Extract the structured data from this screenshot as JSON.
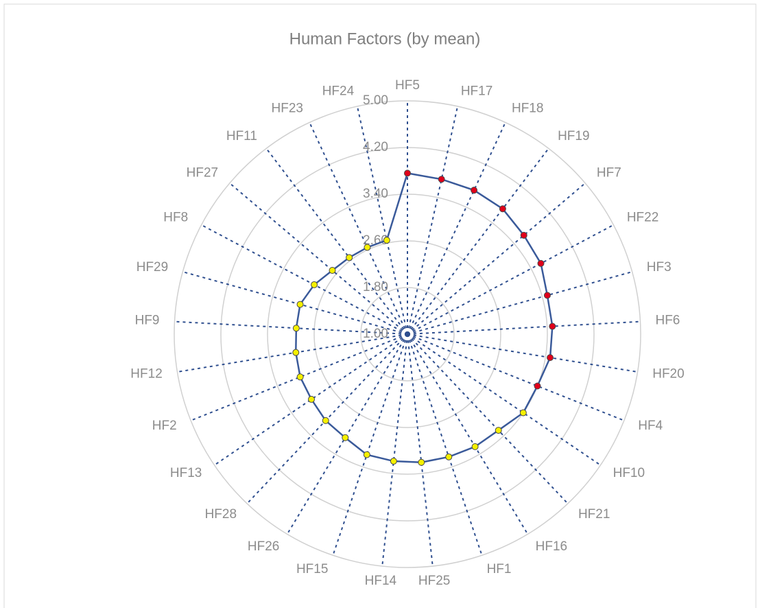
{
  "chart_data": {
    "type": "radar",
    "title": "Human Factors (by mean)",
    "categories": [
      "HF5",
      "HF17",
      "HF18",
      "HF19",
      "HF7",
      "HF22",
      "HF3",
      "HF6",
      "HF20",
      "HF4",
      "HF10",
      "HF21",
      "HF16",
      "HF1",
      "HF25",
      "HF14",
      "HF15",
      "HF26",
      "HF28",
      "HF13",
      "HF2",
      "HF12",
      "HF9",
      "HF29",
      "HF8",
      "HF27",
      "HF11",
      "HF23",
      "HF24"
    ],
    "series": [
      {
        "color": "#3a5a9a",
        "marker_colors": [
          "#e0001a",
          "#e0001a",
          "#e0001a",
          "#e0001a",
          "#e0001a",
          "#e0001a",
          "#e0001a",
          "#e0001a",
          "#e0001a",
          "#e0001a",
          "#f5f000",
          "#f5f000",
          "#f5f000",
          "#f5f000",
          "#f5f000",
          "#f5f000",
          "#f5f000",
          "#f5f000",
          "#f5f000",
          "#f5f000",
          "#f5f000",
          "#f5f000",
          "#f5f000",
          "#f5f000",
          "#f5f000",
          "#f5f000",
          "#f5f000",
          "#f5f000",
          "#f5f000"
        ],
        "values": [
          3.76,
          3.72,
          3.72,
          3.7,
          3.62,
          3.59,
          3.49,
          3.49,
          3.48,
          3.4,
          3.4,
          3.27,
          3.25,
          3.22,
          3.21,
          3.19,
          3.18,
          3.07,
          3.04,
          2.99,
          2.98,
          2.94,
          2.91,
          2.91,
          2.81,
          2.69,
          2.65,
          2.64,
          2.65
        ]
      }
    ],
    "ylim": [
      1,
      5
    ],
    "yticks": [
      {
        "value": 1,
        "label": "1.00"
      },
      {
        "value": 1.8,
        "label": "1.80"
      },
      {
        "value": 2.6,
        "label": "2.60"
      },
      {
        "value": 3.4,
        "label": "3.40"
      },
      {
        "value": 4.2,
        "label": "4.20"
      },
      {
        "value": 5,
        "label": "5.00"
      }
    ],
    "grid": true
  }
}
